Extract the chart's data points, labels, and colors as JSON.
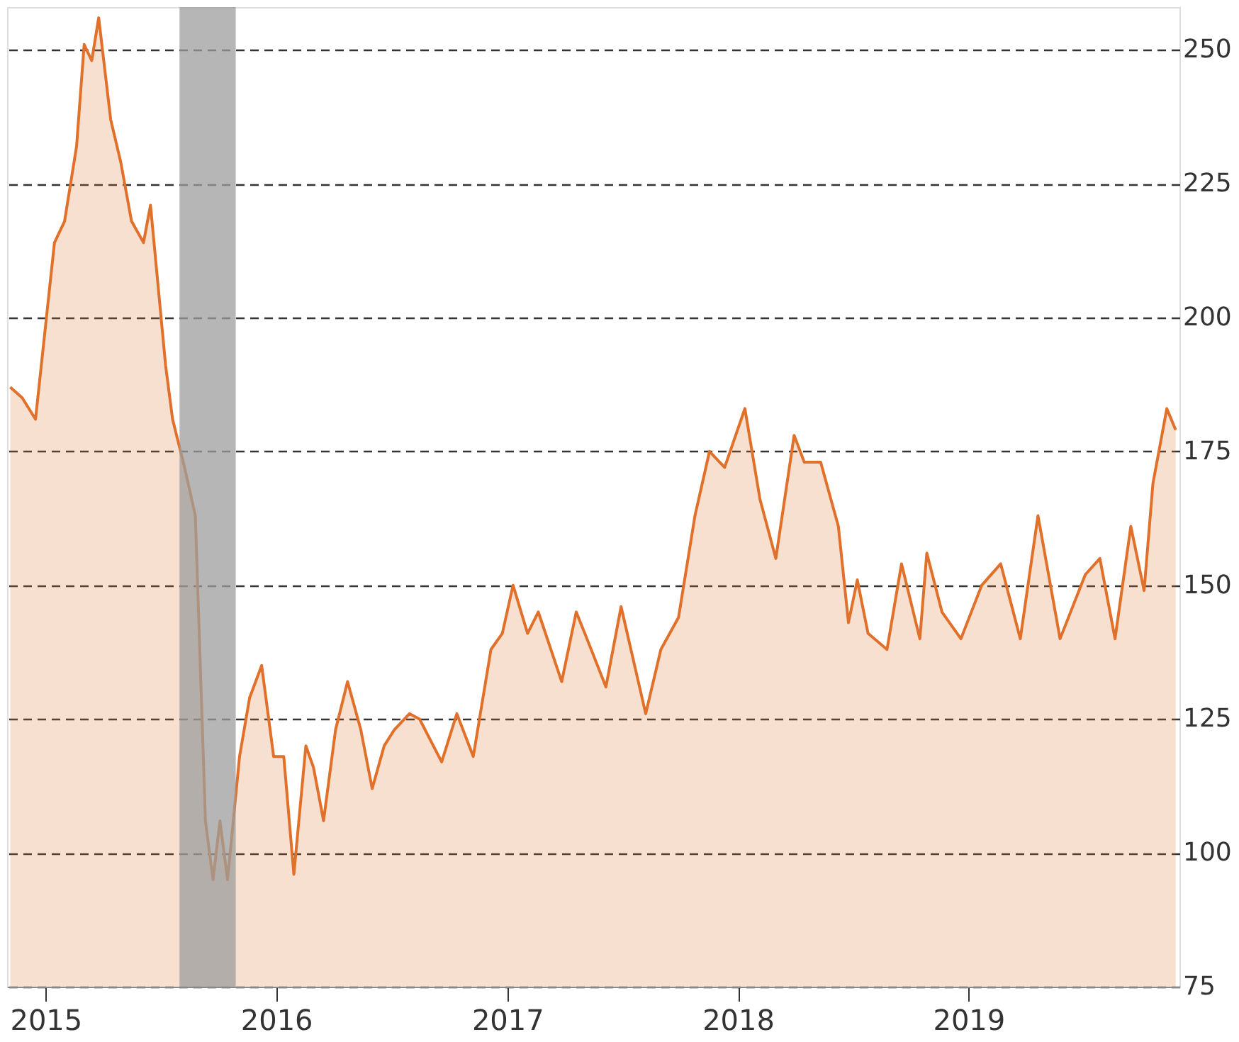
{
  "chart_data": {
    "type": "area",
    "x": [
      "2014-11-06",
      "2014-11-25",
      "2014-12-16",
      "2015-01-15",
      "2015-01-31",
      "2015-02-19",
      "2015-03-03",
      "2015-03-15",
      "2015-03-26",
      "2015-04-14",
      "2015-04-30",
      "2015-05-17",
      "2015-06-05",
      "2015-06-16",
      "2015-07-10",
      "2015-07-21",
      "2015-08-09",
      "2015-08-26",
      "2015-09-11",
      "2015-09-23",
      "2015-10-04",
      "2015-10-16",
      "2015-11-04",
      "2015-11-20",
      "2015-12-09",
      "2015-12-28",
      "2016-01-13",
      "2016-01-29",
      "2016-02-17",
      "2016-02-29",
      "2016-03-16",
      "2016-04-04",
      "2016-04-23",
      "2016-05-14",
      "2016-06-01",
      "2016-06-20",
      "2016-07-06",
      "2016-07-30",
      "2016-08-15",
      "2016-09-19",
      "2016-10-13",
      "2016-11-08",
      "2016-12-06",
      "2016-12-24",
      "2017-01-10",
      "2017-02-02",
      "2017-02-19",
      "2017-03-28",
      "2017-04-20",
      "2017-05-07",
      "2017-06-06",
      "2017-06-30",
      "2017-08-08",
      "2017-09-01",
      "2017-09-29",
      "2017-10-25",
      "2017-11-17",
      "2017-12-11",
      "2018-01-12",
      "2018-02-05",
      "2018-03-02",
      "2018-03-31",
      "2018-04-16",
      "2018-05-12",
      "2018-06-09",
      "2018-06-25",
      "2018-07-09",
      "2018-07-26",
      "2018-08-25",
      "2018-09-17",
      "2018-10-16",
      "2018-10-27",
      "2018-11-20",
      "2018-12-20",
      "2019-01-22",
      "2019-02-21",
      "2019-03-24",
      "2019-04-21",
      "2019-05-26",
      "2019-07-05",
      "2019-07-28",
      "2019-08-21",
      "2019-09-15",
      "2019-10-06",
      "2019-10-20",
      "2019-11-11",
      "2019-11-25"
    ],
    "series": [
      {
        "color": "#e0702a",
        "values": [
          187,
          185,
          181,
          214,
          218,
          232,
          251,
          248,
          256,
          237,
          229,
          218,
          214,
          221,
          191,
          181,
          172,
          163,
          106,
          95,
          106,
          95,
          118,
          129,
          135,
          118,
          118,
          96,
          120,
          116,
          106,
          123,
          132,
          123,
          112,
          120,
          123,
          126,
          125,
          117,
          126,
          118,
          138,
          141,
          150,
          141,
          145,
          132,
          145,
          140,
          131,
          146,
          126,
          138,
          144,
          163,
          175,
          172,
          183,
          166,
          155,
          178,
          173,
          173,
          161,
          143,
          151,
          141,
          138,
          154,
          140,
          156,
          145,
          140,
          150,
          154,
          140,
          163,
          140,
          152,
          155,
          140,
          161,
          149,
          169,
          183,
          179
        ]
      }
    ],
    "xlim": [
      "2014-11-01",
      "2019-12-01"
    ],
    "ylim": [
      75,
      258
    ],
    "yticks": [
      75,
      100,
      125,
      150,
      175,
      200,
      225,
      250
    ],
    "xticks": [
      {
        "value": "2015-01-01",
        "label": "2015"
      },
      {
        "value": "2016-01-01",
        "label": "2016"
      },
      {
        "value": "2017-01-01",
        "label": "2017"
      },
      {
        "value": "2018-01-01",
        "label": "2018"
      },
      {
        "value": "2019-01-01",
        "label": "2019"
      }
    ],
    "bands": [
      {
        "axis": "x",
        "from": "2015-08-01",
        "to": "2015-10-29",
        "color": "#9e9e9e"
      }
    ],
    "grid": "y"
  }
}
